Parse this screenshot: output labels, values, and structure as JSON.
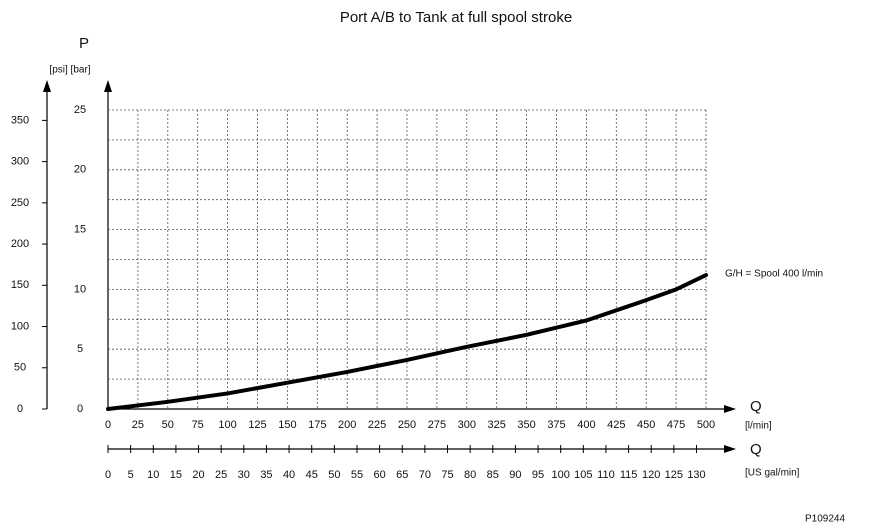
{
  "chart_data": {
    "type": "line",
    "title": "Port A/B to Tank at full spool stroke",
    "y_label": "P",
    "y_units": "[psi] [bar]",
    "x_label": "Q",
    "x_units": "[l/min]",
    "x2_label": "Q",
    "x2_units": "[US gal/min]",
    "figure_id": "P109244",
    "x": [
      0,
      50,
      100,
      150,
      200,
      250,
      300,
      350,
      400,
      450,
      475,
      500
    ],
    "series": [
      {
        "name": "G/H = Spool 400 l/min",
        "color": "#000000",
        "values": [
          0,
          0.6,
          1.3,
          2.2,
          3.1,
          4.1,
          5.2,
          6.2,
          7.4,
          9.1,
          10,
          11.2
        ]
      }
    ],
    "xlim": [
      0,
      500
    ],
    "xticks": [
      0,
      25,
      50,
      75,
      100,
      125,
      150,
      175,
      200,
      225,
      250,
      275,
      300,
      325,
      350,
      375,
      400,
      425,
      450,
      475,
      500
    ],
    "x2lim": [
      0,
      132.1
    ],
    "x2ticks": [
      0,
      5,
      10,
      15,
      20,
      25,
      30,
      35,
      40,
      45,
      50,
      55,
      60,
      65,
      70,
      75,
      80,
      85,
      90,
      95,
      100,
      105,
      110,
      115,
      120,
      125,
      130
    ],
    "ylim": [
      0,
      25
    ],
    "yticks": [
      0,
      5,
      10,
      15,
      20,
      25
    ],
    "y2lim": [
      0,
      362.6
    ],
    "y2ticks": [
      0,
      50,
      100,
      150,
      200,
      250,
      300,
      350
    ],
    "grid": true
  }
}
